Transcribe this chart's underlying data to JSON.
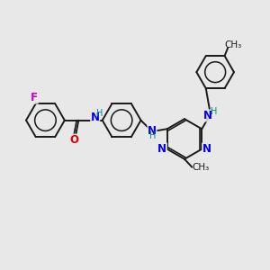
{
  "background_color": "#e8e8e8",
  "bond_color": "#1a1a1a",
  "nitrogen_color": "#0000ee",
  "oxygen_color": "#dd0000",
  "fluorine_color": "#cc00cc",
  "nh_color": "#008888",
  "carbon_color": "#1a1a1a",
  "figsize": [
    3.0,
    3.0
  ],
  "dpi": 100,
  "xlim": [
    0,
    10
  ],
  "ylim": [
    0,
    10
  ]
}
